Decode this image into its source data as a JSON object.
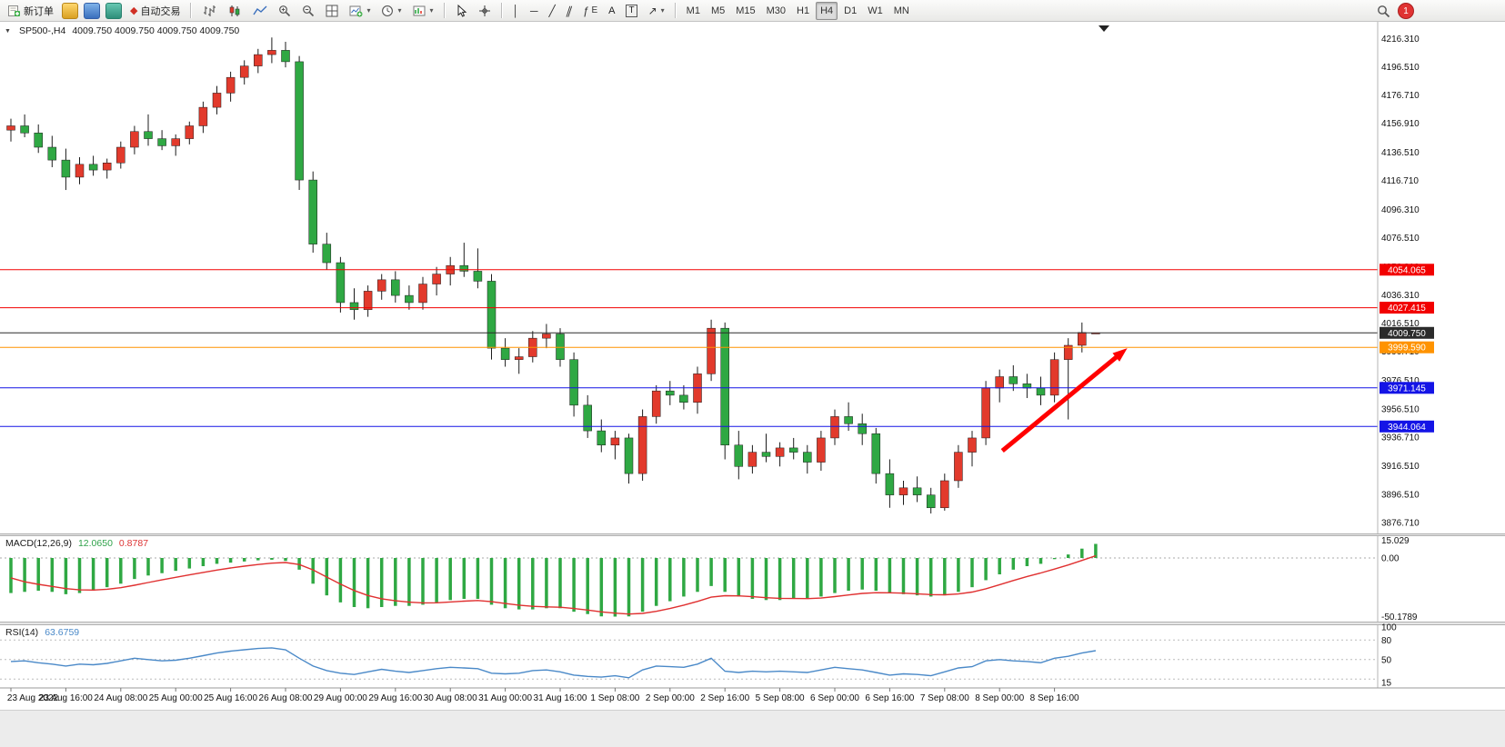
{
  "toolbar": {
    "new_order_label": "新订单",
    "autotrading_label": "自动交易",
    "text_tool_label": "A",
    "label_tool_label": "T",
    "timeframes": [
      "M1",
      "M5",
      "M15",
      "M30",
      "H1",
      "H4",
      "D1",
      "W1",
      "MN"
    ],
    "active_timeframe": "H4",
    "notification_count": "1",
    "glyphs": {
      "collapse": "▼",
      "autotrading": "◆",
      "vline": "│",
      "hline": "─",
      "tline": "╱",
      "channel": "∥",
      "fib": "ƒ",
      "arrows": "↗",
      "chevron": "▾"
    }
  },
  "chart": {
    "symbol": "SP500-,H4",
    "ohlc": "4009.750 4009.750 4009.750 4009.750"
  },
  "indicators": {
    "macd": {
      "label": "MACD(12,26,9)",
      "main_value": "12.0650",
      "signal_value": "0.8787"
    },
    "rsi": {
      "label": "RSI(14)",
      "value": "63.6759"
    }
  },
  "chart_data": {
    "type": "candlestick",
    "symbol": "SP500-",
    "timeframe": "H4",
    "price_range": [
      3869,
      4228
    ],
    "colors": {
      "bull": "#e23a2c",
      "bear": "#2fa843",
      "wick": "#1c1c1c",
      "macd_hist": "#2fa843",
      "macd_signal": "#e03030",
      "rsi_line": "#4a89c8"
    },
    "candles": [
      [
        4152,
        4160,
        4144,
        4155
      ],
      [
        4155,
        4163,
        4147,
        4150
      ],
      [
        4150,
        4156,
        4136,
        4140
      ],
      [
        4140,
        4148,
        4126,
        4131
      ],
      [
        4131,
        4139,
        4110,
        4119
      ],
      [
        4119,
        4133,
        4114,
        4128
      ],
      [
        4128,
        4134,
        4120,
        4124
      ],
      [
        4124,
        4132,
        4118,
        4129
      ],
      [
        4129,
        4144,
        4125,
        4140
      ],
      [
        4140,
        4155,
        4135,
        4151
      ],
      [
        4151,
        4163,
        4141,
        4146
      ],
      [
        4146,
        4152,
        4138,
        4141
      ],
      [
        4141,
        4149,
        4134,
        4146
      ],
      [
        4146,
        4158,
        4142,
        4155
      ],
      [
        4155,
        4172,
        4150,
        4168
      ],
      [
        4168,
        4183,
        4163,
        4178
      ],
      [
        4178,
        4193,
        4172,
        4189
      ],
      [
        4189,
        4201,
        4184,
        4197
      ],
      [
        4197,
        4209,
        4192,
        4205
      ],
      [
        4205,
        4217,
        4199,
        4208
      ],
      [
        4208,
        4214,
        4196,
        4200
      ],
      [
        4200,
        4204,
        4110,
        4117
      ],
      [
        4117,
        4123,
        4066,
        4072
      ],
      [
        4072,
        4080,
        4054,
        4059
      ],
      [
        4059,
        4063,
        4024,
        4031
      ],
      [
        4031,
        4041,
        4019,
        4026
      ],
      [
        4026,
        4043,
        4021,
        4039
      ],
      [
        4039,
        4051,
        4033,
        4047
      ],
      [
        4047,
        4053,
        4031,
        4036
      ],
      [
        4036,
        4043,
        4026,
        4031
      ],
      [
        4031,
        4049,
        4026,
        4044
      ],
      [
        4044,
        4056,
        4036,
        4051
      ],
      [
        4051,
        4063,
        4043,
        4057
      ],
      [
        4057,
        4073,
        4049,
        4053
      ],
      [
        4053,
        4069,
        4041,
        4046
      ],
      [
        4046,
        4051,
        3991,
        3999
      ],
      [
        3999,
        4006,
        3986,
        3991
      ],
      [
        3991,
        3999,
        3981,
        3993
      ],
      [
        3993,
        4011,
        3989,
        4006
      ],
      [
        4006,
        4016,
        3999,
        4009
      ],
      [
        4009,
        4013,
        3986,
        3991
      ],
      [
        3991,
        3996,
        3951,
        3959
      ],
      [
        3959,
        3966,
        3936,
        3941
      ],
      [
        3941,
        3949,
        3926,
        3931
      ],
      [
        3931,
        3941,
        3921,
        3936
      ],
      [
        3936,
        3939,
        3904,
        3911
      ],
      [
        3911,
        3956,
        3906,
        3951
      ],
      [
        3951,
        3973,
        3946,
        3969
      ],
      [
        3969,
        3976,
        3959,
        3966
      ],
      [
        3966,
        3973,
        3956,
        3961
      ],
      [
        3961,
        3986,
        3953,
        3981
      ],
      [
        3981,
        4019,
        3976,
        4013
      ],
      [
        4013,
        4017,
        3921,
        3931
      ],
      [
        3931,
        3941,
        3907,
        3916
      ],
      [
        3916,
        3931,
        3911,
        3926
      ],
      [
        3926,
        3939,
        3919,
        3923
      ],
      [
        3923,
        3933,
        3916,
        3929
      ],
      [
        3929,
        3936,
        3921,
        3926
      ],
      [
        3926,
        3931,
        3911,
        3919
      ],
      [
        3919,
        3941,
        3913,
        3936
      ],
      [
        3936,
        3956,
        3931,
        3951
      ],
      [
        3951,
        3961,
        3941,
        3946
      ],
      [
        3946,
        3953,
        3931,
        3939
      ],
      [
        3939,
        3943,
        3904,
        3911
      ],
      [
        3911,
        3921,
        3887,
        3896
      ],
      [
        3896,
        3906,
        3889,
        3901
      ],
      [
        3901,
        3909,
        3891,
        3896
      ],
      [
        3896,
        3901,
        3883,
        3887
      ],
      [
        3887,
        3911,
        3885,
        3906
      ],
      [
        3906,
        3931,
        3901,
        3926
      ],
      [
        3926,
        3941,
        3916,
        3936
      ],
      [
        3936,
        3976,
        3931,
        3971
      ],
      [
        3971,
        3984,
        3961,
        3979
      ],
      [
        3979,
        3987,
        3969,
        3974
      ],
      [
        3974,
        3981,
        3964,
        3971
      ],
      [
        3971,
        3979,
        3959,
        3966
      ],
      [
        3966,
        3996,
        3961,
        3991
      ],
      [
        3991,
        4006,
        3949,
        4001
      ],
      [
        4001,
        4017,
        3996,
        4010
      ],
      [
        4009.75,
        4009.75,
        4009.75,
        4009.75
      ]
    ],
    "time_labels": [
      "23 Aug 2022",
      "23 Aug 16:00",
      "24 Aug 08:00",
      "25 Aug 00:00",
      "25 Aug 16:00",
      "26 Aug 08:00",
      "29 Aug 00:00",
      "29 Aug 16:00",
      "30 Aug 08:00",
      "31 Aug 00:00",
      "31 Aug 16:00",
      "1 Sep 08:00",
      "2 Sep 00:00",
      "2 Sep 16:00",
      "5 Sep 08:00",
      "6 Sep 00:00",
      "6 Sep 16:00",
      "7 Sep 08:00",
      "8 Sep 00:00",
      "8 Sep 16:00"
    ],
    "price_axis_labels": [
      "4216.310",
      "4196.510",
      "4176.710",
      "4156.910",
      "4136.510",
      "4116.710",
      "4096.310",
      "4076.510",
      "4056.310",
      "4036.310",
      "4016.510",
      "3996.710",
      "3976.510",
      "3956.510",
      "3936.710",
      "3916.510",
      "3896.510",
      "3876.710"
    ],
    "levels": [
      {
        "price": 4054.065,
        "label": "4054.065",
        "color": "#f20000",
        "type": "resistance"
      },
      {
        "price": 4027.415,
        "label": "4027.415",
        "color": "#f20000",
        "type": "resistance"
      },
      {
        "price": 4009.75,
        "label": "4009.750",
        "color": "#2b2b2b",
        "type": "current-price"
      },
      {
        "price": 3999.59,
        "label": "3999.590",
        "color": "#ff9300",
        "type": "support"
      },
      {
        "price": 3971.145,
        "label": "3971.145",
        "color": "#1414e6",
        "type": "support"
      },
      {
        "price": 3944.064,
        "label": "3944.064",
        "color": "#1414e6",
        "type": "support"
      }
    ],
    "arrow": {
      "start": {
        "index": 72.2,
        "price": 3927
      },
      "end": {
        "index": 81.3,
        "price": 3999
      },
      "color": "#ff0000"
    },
    "macd": {
      "params": "12,26,9",
      "histogram": [
        -30,
        -29,
        -28,
        -29,
        -31,
        -30,
        -28,
        -25,
        -22,
        -18,
        -15,
        -13,
        -11,
        -9,
        -7,
        -5,
        -4,
        -3,
        -2,
        -1.5,
        -2.5,
        -10,
        -22,
        -32,
        -38,
        -42,
        -43,
        -42,
        -41,
        -41,
        -40,
        -38,
        -36,
        -35,
        -35,
        -40,
        -43,
        -44,
        -44,
        -43,
        -43,
        -46,
        -48,
        -50,
        -50.18,
        -50,
        -46,
        -41,
        -37,
        -33,
        -29,
        -24,
        -29,
        -33,
        -35,
        -36,
        -36,
        -35,
        -35,
        -33,
        -30,
        -28,
        -27,
        -28,
        -30,
        -31,
        -32,
        -33,
        -32,
        -29,
        -25,
        -19,
        -14,
        -10,
        -7,
        -5,
        -1,
        3,
        8,
        12.065
      ],
      "scale_labels": [
        "15.029",
        "0.00",
        "-50.1789"
      ]
    },
    "rsi": {
      "period": 14,
      "values": [
        47,
        48,
        45,
        43,
        40,
        43,
        42,
        44,
        48,
        52,
        50,
        48,
        49,
        52,
        56,
        60,
        63,
        65,
        67,
        68,
        65,
        52,
        40,
        33,
        29,
        27,
        31,
        35,
        32,
        30,
        33,
        36,
        38,
        37,
        36,
        29,
        28,
        29,
        33,
        34,
        31,
        26,
        24,
        23,
        25,
        22,
        34,
        40,
        39,
        38,
        43,
        52,
        32,
        30,
        32,
        31,
        32,
        31,
        30,
        34,
        38,
        36,
        34,
        30,
        26,
        28,
        27,
        25,
        31,
        37,
        39,
        48,
        50,
        48,
        47,
        45,
        52,
        55,
        60,
        63.6759
      ],
      "levels": [
        80,
        50,
        20
      ],
      "scale_labels": [
        "100",
        "80",
        "50",
        "15"
      ]
    }
  }
}
